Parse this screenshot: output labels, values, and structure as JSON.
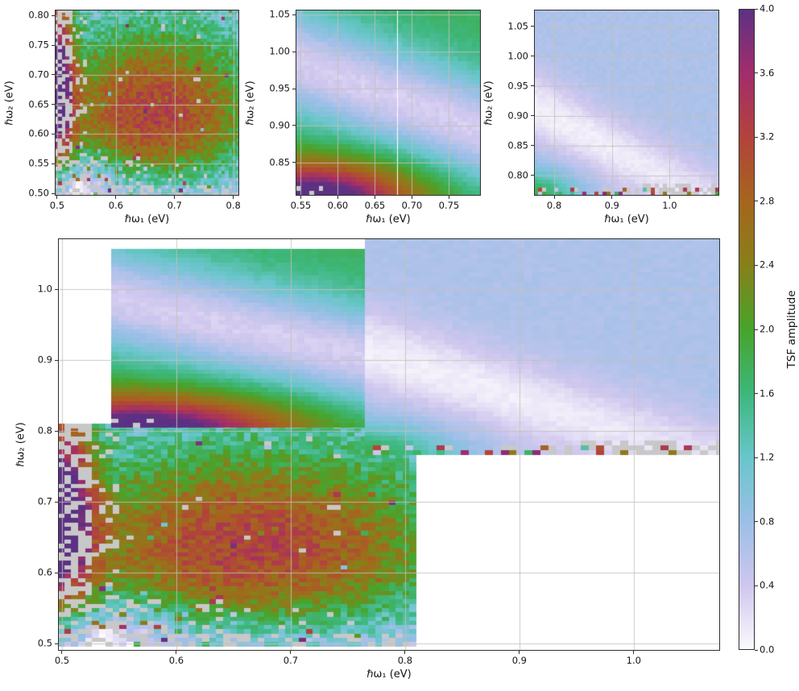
{
  "figure": {
    "background": "#ffffff"
  },
  "chart_data": {
    "type": "heatmap",
    "title": "",
    "colorbar": {
      "label": "TSF amplitude",
      "lim": [
        0.0,
        4.0
      ],
      "ticks": {
        "values": [
          0.0,
          0.4,
          0.8,
          1.2,
          1.6,
          2.0,
          2.4,
          2.8,
          3.2,
          3.6,
          4.0
        ],
        "labels": [
          "0.0",
          "0.4",
          "0.8",
          "1.2",
          "1.6",
          "2.0",
          "2.4",
          "2.8",
          "3.2",
          "3.6",
          "4.0"
        ]
      },
      "nan_color": "#c8c8c8",
      "grid_color": "#c4c0b9",
      "stops": [
        [
          0.0,
          "#fcfafd"
        ],
        [
          0.4,
          "#cfc7ee"
        ],
        [
          0.8,
          "#9bbfe7"
        ],
        [
          1.2,
          "#69c6cb"
        ],
        [
          1.6,
          "#3db77b"
        ],
        [
          2.0,
          "#47a42b"
        ],
        [
          2.4,
          "#87801a"
        ],
        [
          2.8,
          "#a6651e"
        ],
        [
          3.2,
          "#b2433b"
        ],
        [
          3.6,
          "#a22d6b"
        ],
        [
          4.0,
          "#5c3184"
        ]
      ]
    },
    "panels": [
      {
        "id": "panel-top-left",
        "xlabel": "ℏω₁ (eV)",
        "ylabel": "ℏω₂ (eV)",
        "xlim": [
          0.496,
          0.81
        ],
        "ylim": [
          0.496,
          0.81
        ],
        "xticks": {
          "values": [
            0.5,
            0.6,
            0.7,
            0.8
          ],
          "labels": [
            "0.5",
            "0.6",
            "0.7",
            "0.8"
          ]
        },
        "yticks": {
          "values": [
            0.5,
            0.55,
            0.6,
            0.65,
            0.7,
            0.75,
            0.8
          ],
          "labels": [
            "0.50",
            "0.55",
            "0.60",
            "0.65",
            "0.70",
            "0.75",
            "0.80"
          ]
        },
        "grid": true,
        "maps": [
          "A"
        ]
      },
      {
        "id": "panel-top-middle",
        "xlabel": "ℏω₁ (eV)",
        "ylabel": "ℏω₂ (eV)",
        "xlim": [
          0.543,
          0.793
        ],
        "ylim": [
          0.805,
          1.057
        ],
        "xticks": {
          "values": [
            0.55,
            0.6,
            0.65,
            0.7,
            0.75
          ],
          "labels": [
            "0.55",
            "0.60",
            "0.65",
            "0.70",
            "0.75"
          ]
        },
        "yticks": {
          "values": [
            0.85,
            0.9,
            0.95,
            1.0,
            1.05
          ],
          "labels": [
            "0.85",
            "0.90",
            "0.95",
            "1.00",
            "1.05"
          ]
        },
        "grid": true,
        "maps": [
          "B"
        ]
      },
      {
        "id": "panel-top-right",
        "xlabel": "ℏω₁ (eV)",
        "ylabel": "ℏω₂ (eV)",
        "xlim": [
          0.765,
          1.086
        ],
        "ylim": [
          0.766,
          1.078
        ],
        "xticks": {
          "values": [
            0.8,
            0.9,
            1.0
          ],
          "labels": [
            "0.8",
            "0.9",
            "1.0"
          ]
        },
        "yticks": {
          "values": [
            0.8,
            0.85,
            0.9,
            0.95,
            1.0,
            1.05
          ],
          "labels": [
            "0.80",
            "0.85",
            "0.90",
            "0.95",
            "1.00",
            "1.05"
          ]
        },
        "grid": true,
        "maps": [
          "C"
        ]
      },
      {
        "id": "panel-main",
        "xlabel": "ℏω₁ (eV)",
        "ylabel": "ℏω₂ (eV)",
        "xlim": [
          0.4965,
          1.0755
        ],
        "ylim": [
          0.49,
          1.072
        ],
        "xticks": {
          "values": [
            0.5,
            0.6,
            0.7,
            0.8,
            0.9,
            1.0
          ],
          "labels": [
            "0.5",
            "0.6",
            "0.7",
            "0.8",
            "0.9",
            "1.0"
          ]
        },
        "yticks": {
          "values": [
            0.5,
            0.6,
            0.7,
            0.8,
            0.9,
            1.0
          ],
          "labels": [
            "0.5",
            "0.6",
            "0.7",
            "0.8",
            "0.9",
            "1.0"
          ]
        },
        "grid": true,
        "maps": [
          "A",
          "B",
          "C"
        ]
      }
    ],
    "fields": {
      "A": {
        "seed": 3,
        "extent": [
          0.496,
          0.81,
          0.496,
          0.81
        ],
        "cells": 52,
        "base": 0.72,
        "noise": 0.36,
        "terms": [
          {
            "type": "gauss",
            "x": 0.665,
            "y": 0.635,
            "sx": 0.13,
            "sy": 0.105,
            "amp": 2.55
          },
          {
            "type": "gauss",
            "x": 0.5,
            "y": 0.69,
            "sx": 0.02,
            "sy": 0.12,
            "amp": 3.0
          },
          {
            "type": "gauss",
            "x": 0.52,
            "y": 0.5,
            "sx": 0.06,
            "sy": 0.045,
            "amp": -0.9
          },
          {
            "type": "gauss",
            "x": 0.66,
            "y": 0.49,
            "sx": 0.22,
            "sy": 0.05,
            "amp": -0.75
          }
        ],
        "nanZones": [
          {
            "x0": 0.496,
            "x1": 0.525,
            "y0": 0.53,
            "y1": 0.81,
            "prob": 0.5
          },
          {
            "x0": 0.525,
            "x1": 0.553,
            "y0": 0.56,
            "y1": 0.808,
            "prob": 0.14
          },
          {
            "x0": 0.496,
            "x1": 0.64,
            "y0": 0.496,
            "y1": 0.565,
            "prob": 0.17
          },
          {
            "x0": 0.496,
            "x1": 0.81,
            "y0": 0.496,
            "y1": 0.512,
            "prob": 0.3
          },
          {
            "x0": 0.64,
            "x1": 0.81,
            "y0": 0.496,
            "y1": 0.53,
            "prob": 0.06
          },
          {
            "x0": 0.496,
            "x1": 0.81,
            "y0": 0.496,
            "y1": 0.81,
            "prob": 0.006
          }
        ],
        "wildZones": [
          {
            "x0": 0.496,
            "x1": 0.66,
            "y0": 0.496,
            "y1": 0.58,
            "prob": 0.07
          },
          {
            "x0": 0.496,
            "x1": 0.515,
            "y0": 0.496,
            "y1": 0.62,
            "prob": 0.15
          },
          {
            "x0": 0.66,
            "x1": 0.81,
            "y0": 0.496,
            "y1": 0.525,
            "prob": 0.05
          },
          {
            "x0": 0.496,
            "x1": 0.81,
            "y0": 0.496,
            "y1": 0.81,
            "prob": 0.01
          }
        ]
      },
      "B": {
        "seed": 7,
        "extent": [
          0.543,
          0.793,
          0.805,
          1.057
        ],
        "cells": 40,
        "base": 1.72,
        "noise": 0.06,
        "terms": [
          {
            "type": "diag",
            "x0": 0.543,
            "y0": 0.988,
            "slope": -0.38,
            "w": 0.052,
            "amp": -1.38
          },
          {
            "type": "gauss",
            "x": 0.565,
            "y": 0.795,
            "sx": 0.095,
            "sy": 0.038,
            "amp": 2.9
          }
        ],
        "nanZones": [
          {
            "x0": 0.543,
            "x1": 0.585,
            "y0": 0.805,
            "y1": 0.817,
            "prob": 0.22
          }
        ],
        "wildZones": []
      },
      "C": {
        "seed": 5,
        "extent": [
          0.765,
          1.086,
          0.766,
          1.078
        ],
        "cells": 46,
        "base": 0.66,
        "noise": 0.05,
        "terms": [
          {
            "type": "diag",
            "x0": 0.765,
            "y0": 0.915,
            "slope": -0.52,
            "w": 0.042,
            "amp": -0.58,
            "xfade": [
              0.765,
              0.62
            ]
          },
          {
            "type": "gauss",
            "x": 0.765,
            "y": 0.762,
            "sx": 0.05,
            "sy": 0.033,
            "amp": 1.2
          }
        ],
        "nanZones": [
          {
            "x0": 0.95,
            "x1": 1.086,
            "y0": 0.766,
            "y1": 0.786,
            "prob": 0.4
          },
          {
            "x0": 0.765,
            "x1": 0.95,
            "y0": 0.766,
            "y1": 0.779,
            "prob": 0.12
          }
        ],
        "wildZones": [
          {
            "x0": 0.765,
            "x1": 1.086,
            "y0": 0.766,
            "y1": 0.778,
            "prob": 0.3
          }
        ]
      }
    }
  }
}
